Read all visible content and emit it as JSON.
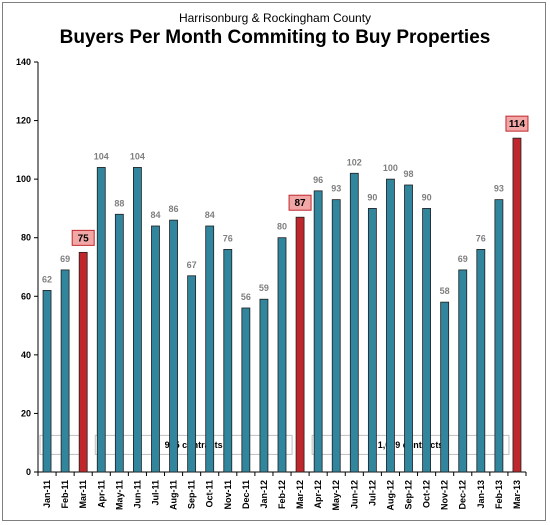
{
  "chart_data": {
    "type": "bar",
    "subtitle": "Harrisonburg & Rockingham County",
    "title": "Buyers Per Month Commiting to Buy Properties",
    "categories": [
      "Jan-11",
      "Feb-11",
      "Mar-11",
      "Apr-11",
      "May-11",
      "Jun-11",
      "Jul-11",
      "Aug-11",
      "Sep-11",
      "Oct-11",
      "Nov-11",
      "Dec-11",
      "Jan-12",
      "Feb-12",
      "Mar-12",
      "Apr-12",
      "May-12",
      "Jun-12",
      "Jul-12",
      "Aug-12",
      "Sep-12",
      "Oct-12",
      "Nov-12",
      "Dec-12",
      "Jan-13",
      "Feb-13",
      "Mar-13"
    ],
    "values": [
      62,
      69,
      75,
      104,
      88,
      104,
      84,
      86,
      67,
      84,
      76,
      56,
      59,
      80,
      87,
      96,
      93,
      102,
      90,
      100,
      98,
      90,
      58,
      69,
      76,
      93,
      114
    ],
    "highlighted": [
      "Mar-11",
      "Mar-12",
      "Mar-13"
    ],
    "ylim": [
      0,
      140
    ],
    "yticks": [
      0,
      20,
      40,
      60,
      80,
      100,
      120,
      140
    ],
    "grid": false,
    "colors": {
      "bar": "#31859c",
      "highlight": "#c0272d",
      "highlight_label_bg": "#f2a7a7",
      "value_label": "#7f7f7f"
    },
    "annotations": [
      {
        "text": "975 contracts",
        "span": [
          "Apr-11",
          "Mar-12"
        ]
      },
      {
        "text": "1,079 contracts",
        "span": [
          "Apr-12",
          "Mar-13"
        ]
      }
    ]
  }
}
